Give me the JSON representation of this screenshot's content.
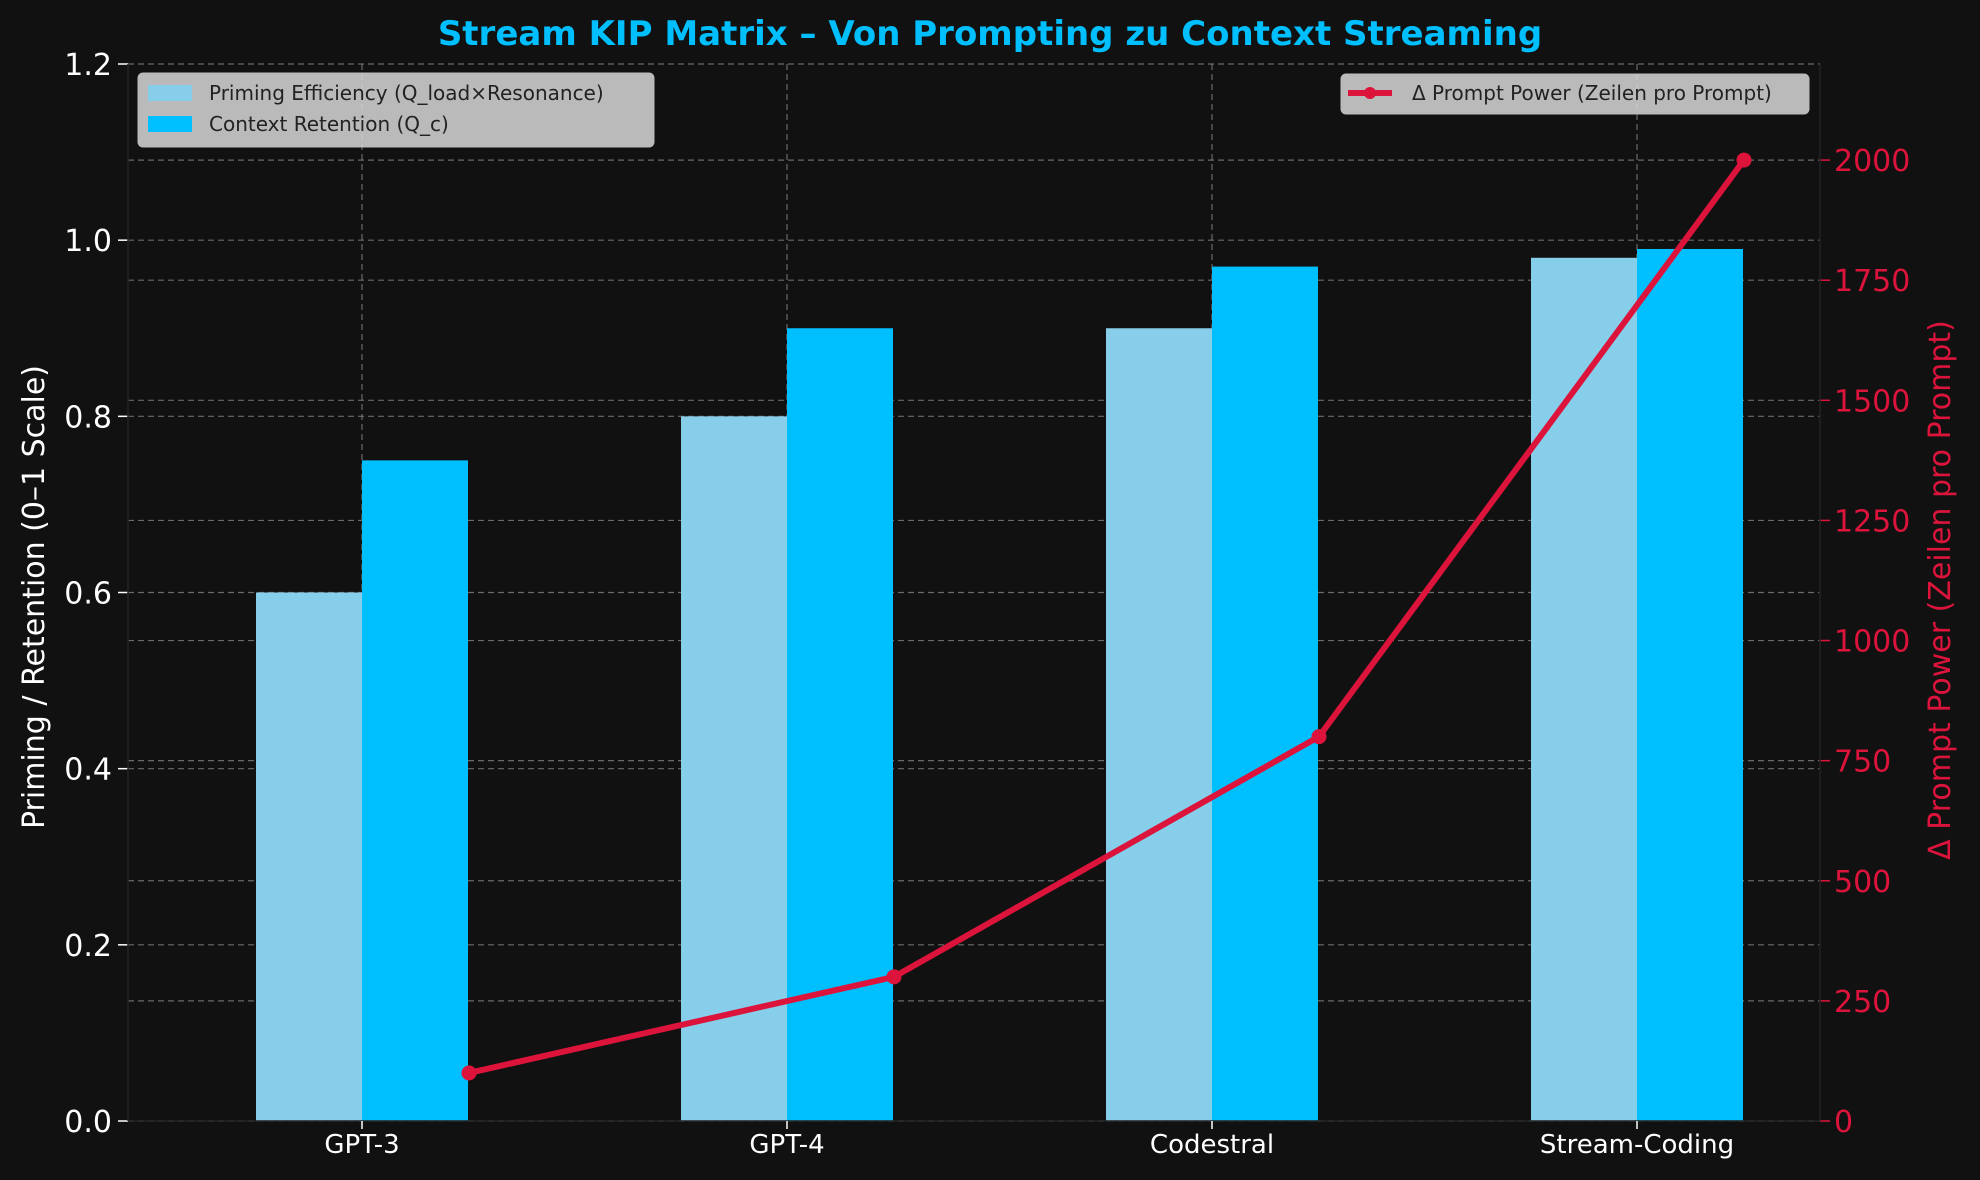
{
  "chart_data": {
    "type": "bar",
    "title": "Stream KIP Matrix – Von Prompting zu Context Streaming",
    "categories": [
      "GPT-3",
      "GPT-4",
      "Codestral",
      "Stream-Coding"
    ],
    "series": [
      {
        "name": "Priming Efficiency (Q_load×Resonance)",
        "kind": "bar",
        "axis": "left",
        "color": "#87CEEB",
        "values": [
          0.6,
          0.8,
          0.9,
          0.98
        ]
      },
      {
        "name": "Context Retention (Q_c)",
        "kind": "bar",
        "axis": "left",
        "color": "#00BFFF",
        "values": [
          0.75,
          0.9,
          0.97,
          0.99
        ]
      },
      {
        "name": "Δ Prompt Power (Zeilen pro Prompt)",
        "kind": "line",
        "axis": "right",
        "color": "#DC143C",
        "values": [
          100,
          300,
          800,
          2000
        ]
      }
    ],
    "ylabel": "Priming / Retention (0–1 Scale)",
    "ylabel_right": "Δ Prompt Power (Zeilen pro Prompt)",
    "ylim": [
      0,
      1.2
    ],
    "ylim_right": [
      0,
      2200
    ],
    "yticks": [
      "0.0",
      "0.2",
      "0.4",
      "0.6",
      "0.8",
      "1.0",
      "1.2"
    ],
    "yticks_right": [
      "0",
      "250",
      "500",
      "750",
      "1000",
      "1250",
      "1500",
      "1750",
      "2000"
    ],
    "grid": true,
    "legend_left_position": "top-left",
    "legend_right_position": "top-right",
    "colors": {
      "background": "#111111",
      "title": "#00BFFF",
      "right_axis": "#DC143C",
      "text": "#ffffff",
      "grid": "#888888"
    }
  }
}
